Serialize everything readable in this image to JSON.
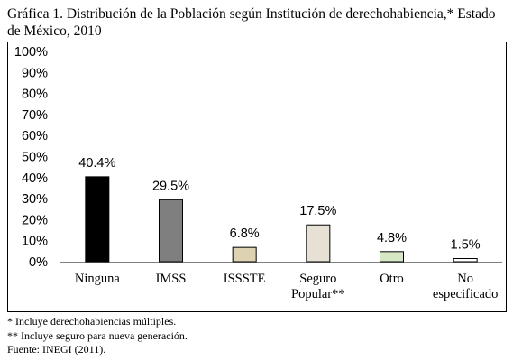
{
  "title": "Gráfica 1. Distribución de la Población según Institución de derechohabiencia,* Estado de México, 2010",
  "chart_data": {
    "type": "bar",
    "categories": [
      [
        "Ninguna"
      ],
      [
        "IMSS"
      ],
      [
        "ISSSTE"
      ],
      [
        "Seguro",
        "Popular**"
      ],
      [
        "Otro"
      ],
      [
        "No",
        "especificado"
      ]
    ],
    "values": [
      40.4,
      29.5,
      6.8,
      17.5,
      4.8,
      1.5
    ],
    "data_labels": [
      "40.4%",
      "29.5%",
      "6.8%",
      "17.5%",
      "4.8%",
      "1.5%"
    ],
    "colors": [
      "#000000",
      "#7f7f7f",
      "#ddd3b2",
      "#e6e1d4",
      "#d7e8c5",
      "#ffffff"
    ],
    "ylim": [
      0,
      100
    ],
    "yticks": [
      "0%",
      "10%",
      "20%",
      "30%",
      "40%",
      "50%",
      "60%",
      "70%",
      "80%",
      "90%",
      "100%"
    ],
    "grid": false,
    "legend": "none"
  },
  "notes": [
    "* Incluye derechohabiencias múltiples.",
    "** Incluye seguro para nueva generación.",
    "Fuente: INEGI (2011)."
  ]
}
